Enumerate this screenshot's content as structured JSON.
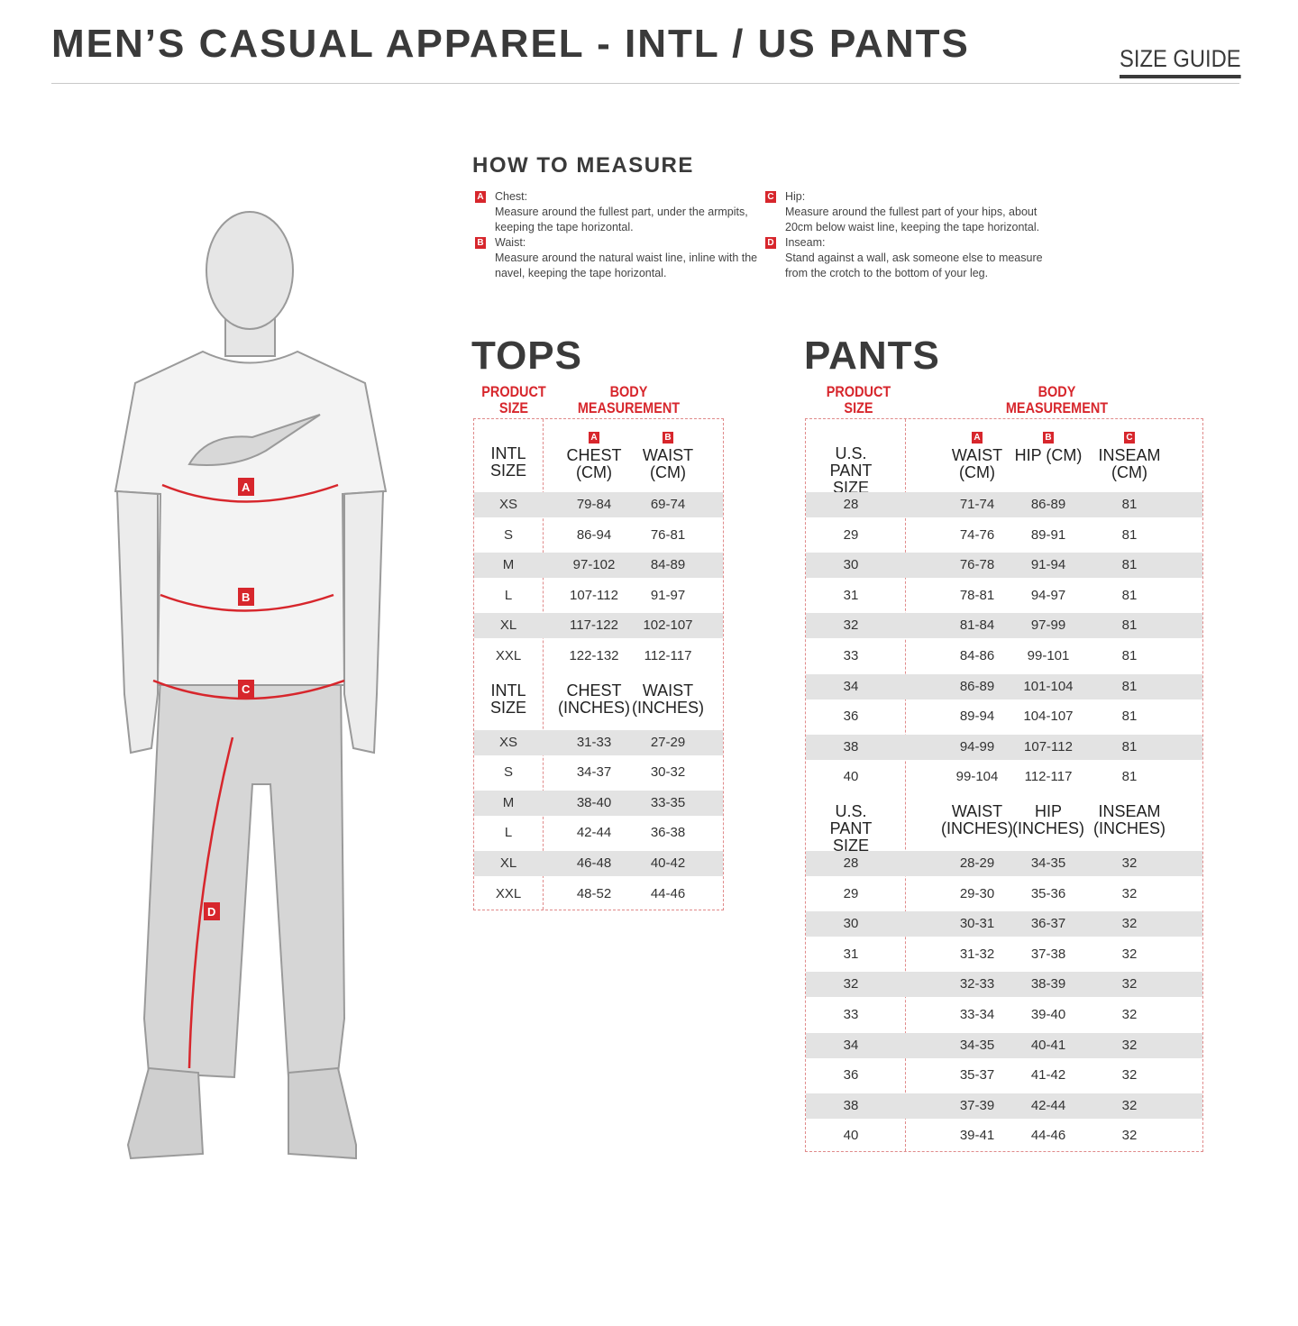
{
  "header": {
    "title": "MEN’S CASUAL APPAREL - INTL / US PANTS",
    "size_guide": "SIZE GUIDE"
  },
  "how_to": {
    "title": "HOW TO MEASURE",
    "items": [
      {
        "badge": "A",
        "label": "Chest:",
        "text": "Measure around the fullest part, under the armpits, keeping the tape horizontal."
      },
      {
        "badge": "B",
        "label": "Waist:",
        "text": "Measure around the natural waist line, inline with the navel, keeping the tape horizontal."
      },
      {
        "badge": "C",
        "label": "Hip:",
        "text": "Measure around the fullest part of your hips, about 20cm below waist line, keeping the tape horizontal."
      },
      {
        "badge": "D",
        "label": "Inseam:",
        "text": "Stand against a wall, ask someone else to measure from the crotch to the bottom of your leg."
      }
    ]
  },
  "figure": {
    "markers": [
      "A",
      "B",
      "C",
      "D"
    ],
    "accent": "#d7262c"
  },
  "tops": {
    "title": "TOPS",
    "product_size": "PRODUCT SIZE",
    "body_measurement": "BODY MEASUREMENT",
    "cm_header": {
      "size": "INTL SIZE",
      "cols": [
        {
          "badge": "A",
          "label": "CHEST (CM)"
        },
        {
          "badge": "B",
          "label": "WAIST (CM)"
        }
      ]
    },
    "cm_rows": [
      [
        "XS",
        "79-84",
        "69-74"
      ],
      [
        "S",
        "86-94",
        "76-81"
      ],
      [
        "M",
        "97-102",
        "84-89"
      ],
      [
        "L",
        "107-112",
        "91-97"
      ],
      [
        "XL",
        "117-122",
        "102-107"
      ],
      [
        "XXL",
        "122-132",
        "112-117"
      ]
    ],
    "in_header": {
      "size": "INTL SIZE",
      "cols": [
        "CHEST (INCHES)",
        "WAIST (INCHES)"
      ]
    },
    "in_rows": [
      [
        "XS",
        "31-33",
        "27-29"
      ],
      [
        "S",
        "34-37",
        "30-32"
      ],
      [
        "M",
        "38-40",
        "33-35"
      ],
      [
        "L",
        "42-44",
        "36-38"
      ],
      [
        "XL",
        "46-48",
        "40-42"
      ],
      [
        "XXL",
        "48-52",
        "44-46"
      ]
    ]
  },
  "pants": {
    "title": "PANTS",
    "product_size": "PRODUCT SIZE",
    "body_measurement": "BODY MEASUREMENT",
    "cm_header": {
      "size": "U.S. PANT SIZE",
      "cols": [
        {
          "badge": "A",
          "label": "WAIST (CM)"
        },
        {
          "badge": "B",
          "label": "HIP (CM)"
        },
        {
          "badge": "C",
          "label": "INSEAM (CM)"
        }
      ]
    },
    "cm_rows": [
      [
        "28",
        "71-74",
        "86-89",
        "81"
      ],
      [
        "29",
        "74-76",
        "89-91",
        "81"
      ],
      [
        "30",
        "76-78",
        "91-94",
        "81"
      ],
      [
        "31",
        "78-81",
        "94-97",
        "81"
      ],
      [
        "32",
        "81-84",
        "97-99",
        "81"
      ],
      [
        "33",
        "84-86",
        "99-101",
        "81"
      ],
      [
        "34",
        "86-89",
        "101-104",
        "81"
      ],
      [
        "36",
        "89-94",
        "104-107",
        "81"
      ],
      [
        "38",
        "94-99",
        "107-112",
        "81"
      ],
      [
        "40",
        "99-104",
        "112-117",
        "81"
      ]
    ],
    "in_header": {
      "size": "U.S. PANT SIZE",
      "cols": [
        "WAIST (INCHES)",
        "HIP (INCHES)",
        "INSEAM (INCHES)"
      ]
    },
    "in_rows": [
      [
        "28",
        "28-29",
        "34-35",
        "32"
      ],
      [
        "29",
        "29-30",
        "35-36",
        "32"
      ],
      [
        "30",
        "30-31",
        "36-37",
        "32"
      ],
      [
        "31",
        "31-32",
        "37-38",
        "32"
      ],
      [
        "32",
        "32-33",
        "38-39",
        "32"
      ],
      [
        "33",
        "33-34",
        "39-40",
        "32"
      ],
      [
        "34",
        "34-35",
        "40-41",
        "32"
      ],
      [
        "36",
        "35-37",
        "41-42",
        "32"
      ],
      [
        "38",
        "37-39",
        "42-44",
        "32"
      ],
      [
        "40",
        "39-41",
        "44-46",
        "32"
      ]
    ]
  }
}
